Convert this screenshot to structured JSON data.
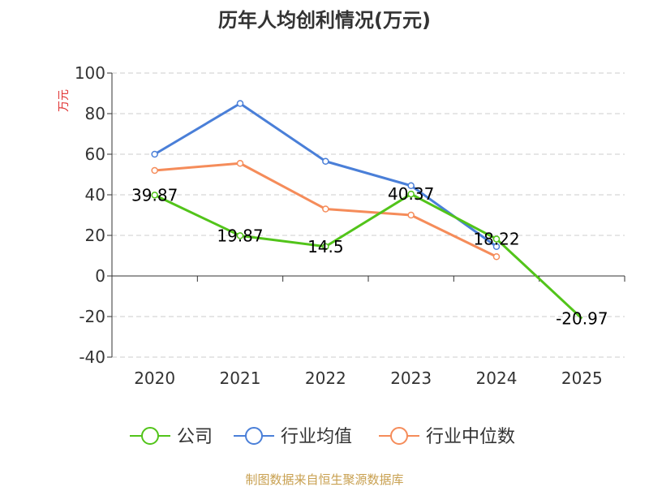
{
  "chart_data": {
    "type": "line",
    "title": "历年人均创利情况(万元)",
    "ylabel": "万元",
    "xlabel": "",
    "categories": [
      "2020",
      "2021",
      "2022",
      "2023",
      "2024",
      "2025"
    ],
    "ylim": [
      -40,
      100
    ],
    "yticks": [
      100,
      80,
      60,
      40,
      20,
      0,
      -20,
      -40
    ],
    "ytick_labels": [
      "100",
      "80",
      "60",
      "40",
      "20",
      "0",
      "-20",
      "-40"
    ],
    "grid": true,
    "legend_position": "bottom",
    "series": [
      {
        "name": "公司",
        "color": "#52c41a",
        "values": [
          39.87,
          19.87,
          14.5,
          40.37,
          18.22,
          -20.97
        ],
        "data_labels": [
          "39.87",
          "19.87",
          "14.5",
          "40.37",
          "18.22",
          "-20.97"
        ]
      },
      {
        "name": "行业均值",
        "color": "#4a7fd8",
        "values": [
          60,
          85,
          56.5,
          44.5,
          14.5,
          null
        ]
      },
      {
        "name": "行业中位数",
        "color": "#f58c5a",
        "values": [
          52,
          55.5,
          33,
          30,
          9.5,
          null
        ]
      }
    ]
  },
  "source_text": "制图数据来自恒生聚源数据库",
  "colors": {
    "axis": "#333333",
    "grid": "#cccccc",
    "ylabel": "#e03030",
    "source": "#c8a050"
  }
}
